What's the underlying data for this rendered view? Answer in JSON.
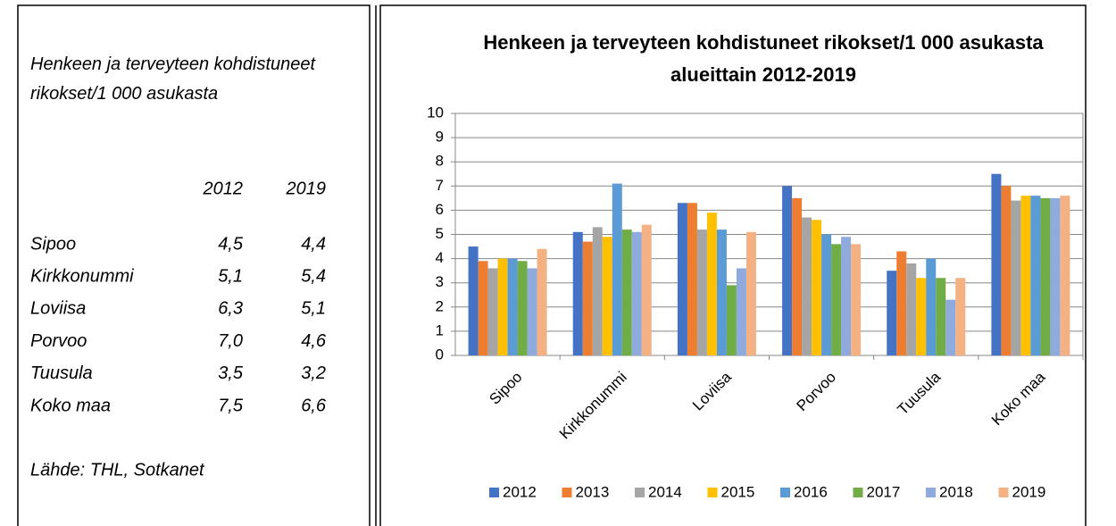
{
  "panel": {
    "title": "Henkeen ja terveyteen kohdistuneet rikokset/1 000 asukasta",
    "header": [
      "2012",
      "2019"
    ],
    "rows": [
      [
        "Sipoo",
        "4,5",
        "4,4"
      ],
      [
        "Kirkkonummi",
        "5,1",
        "5,4"
      ],
      [
        "Loviisa",
        "6,3",
        "5,1"
      ],
      [
        "Porvoo",
        "7,0",
        "4,6"
      ],
      [
        "Tuusula",
        "3,5",
        "3,2"
      ],
      [
        "Koko maa",
        "7,5",
        "6,6"
      ]
    ],
    "source": "Lähde: THL, Sotkanet"
  },
  "chart_data": {
    "type": "bar",
    "title": "Henkeen ja terveyteen kohdistuneet rikokset/1 000 asukasta alueittain 2012-2019",
    "categories": [
      "Sipoo",
      "Kirkkonummi",
      "Loviisa",
      "Porvoo",
      "Tuusula",
      "Koko maa"
    ],
    "series": [
      {
        "name": "2012",
        "color": "#4472c4",
        "values": [
          4.5,
          5.1,
          6.3,
          7.0,
          3.5,
          7.5
        ]
      },
      {
        "name": "2013",
        "color": "#ed7d31",
        "values": [
          3.9,
          4.7,
          6.3,
          6.5,
          4.3,
          7.0
        ]
      },
      {
        "name": "2014",
        "color": "#a5a5a5",
        "values": [
          3.6,
          5.3,
          5.2,
          5.7,
          3.8,
          6.4
        ]
      },
      {
        "name": "2015",
        "color": "#ffc000",
        "values": [
          4.0,
          4.9,
          5.9,
          5.6,
          3.2,
          6.6
        ]
      },
      {
        "name": "2016",
        "color": "#5b9bd5",
        "values": [
          4.0,
          7.1,
          5.2,
          5.0,
          4.0,
          6.6
        ]
      },
      {
        "name": "2017",
        "color": "#70ad47",
        "values": [
          3.9,
          5.2,
          2.9,
          4.6,
          3.2,
          6.5
        ]
      },
      {
        "name": "2018",
        "color": "#8faadc",
        "values": [
          3.6,
          5.1,
          3.6,
          4.9,
          2.3,
          6.5
        ]
      },
      {
        "name": "2019",
        "color": "#f4b183",
        "values": [
          4.4,
          5.4,
          5.1,
          4.6,
          3.2,
          6.6
        ]
      }
    ],
    "ylim": [
      0,
      10
    ],
    "yticks": [
      0,
      1,
      2,
      3,
      4,
      5,
      6,
      7,
      8,
      9,
      10
    ],
    "grid": true,
    "legend": "bottom"
  }
}
